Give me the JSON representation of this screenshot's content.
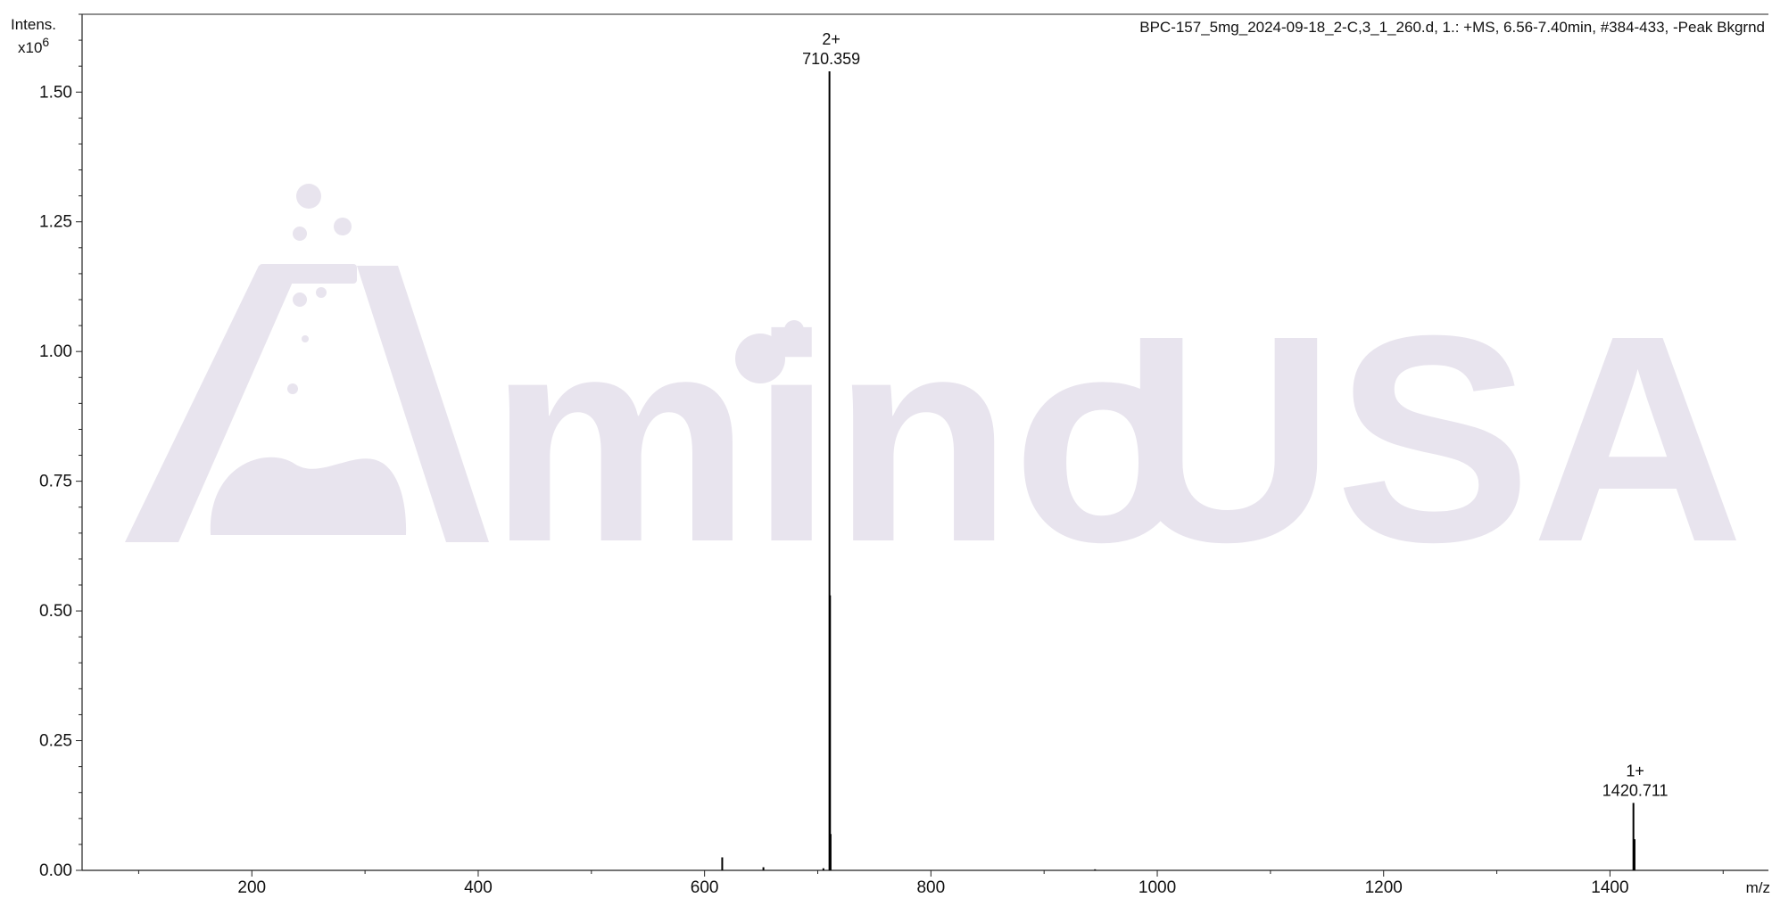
{
  "chart_data": {
    "type": "line",
    "title": "BPC-157_5mg_2024-09-18_2-C,3_1_260.d, 1.: +MS, 6.56-7.40min, #384-433, -Peak Bkgrnd",
    "ylabel": "Intens.",
    "ylabel_exponent": "x10",
    "ylabel_exponent_power": "6",
    "xlabel": "m/z",
    "xlim": [
      50,
      1540
    ],
    "ylim": [
      0,
      1.65
    ],
    "x_ticks": [
      200,
      400,
      600,
      800,
      1000,
      1200,
      1400
    ],
    "x_tick_labels": [
      "200",
      "400",
      "600",
      "800",
      "1000",
      "1200",
      "1400"
    ],
    "y_ticks": [
      0,
      0.25,
      0.5,
      0.75,
      1.0,
      1.25,
      1.5
    ],
    "y_tick_labels": [
      "0.00",
      "0.25",
      "0.50",
      "0.75",
      "1.00",
      "1.25",
      "1.50"
    ],
    "grid": false,
    "series": [
      {
        "peaks": [
          {
            "mz": 615.6,
            "intensity": 0.025
          },
          {
            "mz": 652.0,
            "intensity": 0.006
          },
          {
            "mz": 705.0,
            "intensity": 0.004
          },
          {
            "mz": 710.359,
            "intensity": 1.54
          },
          {
            "mz": 710.86,
            "intensity": 0.53
          },
          {
            "mz": 711.36,
            "intensity": 0.07
          },
          {
            "mz": 945.0,
            "intensity": 0.002
          },
          {
            "mz": 1420.711,
            "intensity": 0.13
          },
          {
            "mz": 1421.71,
            "intensity": 0.06
          }
        ]
      }
    ],
    "annotations": [
      {
        "mz": 710.359,
        "charge": "2+",
        "label": "710.359",
        "intensity": 1.54
      },
      {
        "mz": 1420.711,
        "charge": "1+",
        "label": "1420.711",
        "intensity": 0.13
      }
    ]
  },
  "watermark": {
    "text_mino": "mino",
    "text_usa": "USA",
    "color": "#e8e4ee"
  }
}
